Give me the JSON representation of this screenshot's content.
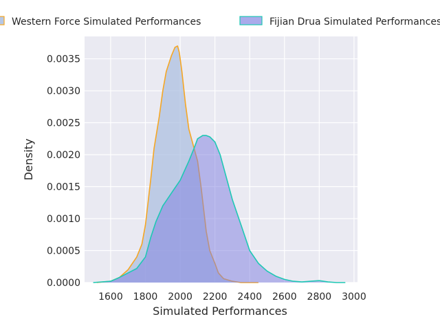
{
  "chart_data": {
    "type": "area",
    "title": "",
    "xlabel": "Simulated Performances",
    "ylabel": "Density",
    "xlim": [
      1450,
      3020
    ],
    "ylim": [
      0,
      0.00385
    ],
    "x_ticks": [
      "1600",
      "1800",
      "2000",
      "2200",
      "2400",
      "2600",
      "2800",
      "3000"
    ],
    "y_ticks": [
      "0.0000",
      "0.0005",
      "0.0010",
      "0.0015",
      "0.0020",
      "0.0025",
      "0.0030",
      "0.0035"
    ],
    "grid": true,
    "legend_position": "top",
    "series": [
      {
        "name": "Western Force Simulated Performances",
        "fill_color": "#a9bde0",
        "line_color": "#f5a623",
        "x": [
          1520,
          1600,
          1650,
          1700,
          1750,
          1780,
          1800,
          1830,
          1850,
          1880,
          1900,
          1920,
          1950,
          1970,
          1985,
          1995,
          2010,
          2030,
          2050,
          2080,
          2100,
          2120,
          2150,
          2170,
          2200,
          2220,
          2250,
          2300,
          2350,
          2400,
          2450
        ],
        "y": [
          0.0,
          2e-05,
          8e-05,
          0.0002,
          0.0004,
          0.0006,
          0.0009,
          0.0016,
          0.0021,
          0.0026,
          0.003,
          0.0033,
          0.00355,
          0.00368,
          0.0037,
          0.0036,
          0.0033,
          0.0028,
          0.0024,
          0.0021,
          0.0019,
          0.0015,
          0.0008,
          0.0005,
          0.0003,
          0.00015,
          6e-05,
          2e-05,
          0.0,
          0.0,
          0.0
        ]
      },
      {
        "name": "Fijian Drua Simulated Performances",
        "fill_color": "#7d7ee0",
        "line_color": "#1ec8b4",
        "x": [
          1500,
          1600,
          1650,
          1700,
          1750,
          1800,
          1830,
          1860,
          1900,
          1950,
          2000,
          2050,
          2080,
          2100,
          2130,
          2150,
          2170,
          2200,
          2230,
          2260,
          2300,
          2350,
          2400,
          2450,
          2500,
          2550,
          2600,
          2650,
          2700,
          2750,
          2800,
          2850,
          2900,
          2950
        ],
        "y": [
          0.0,
          2e-05,
          8e-05,
          0.00015,
          0.00022,
          0.0004,
          0.0007,
          0.00095,
          0.0012,
          0.0014,
          0.0016,
          0.0019,
          0.0021,
          0.00225,
          0.0023,
          0.0023,
          0.00228,
          0.0022,
          0.002,
          0.0017,
          0.0013,
          0.0009,
          0.0005,
          0.0003,
          0.00018,
          0.0001,
          5e-05,
          2e-05,
          1e-05,
          2e-05,
          3e-05,
          1e-05,
          0.0,
          0.0
        ]
      }
    ]
  }
}
